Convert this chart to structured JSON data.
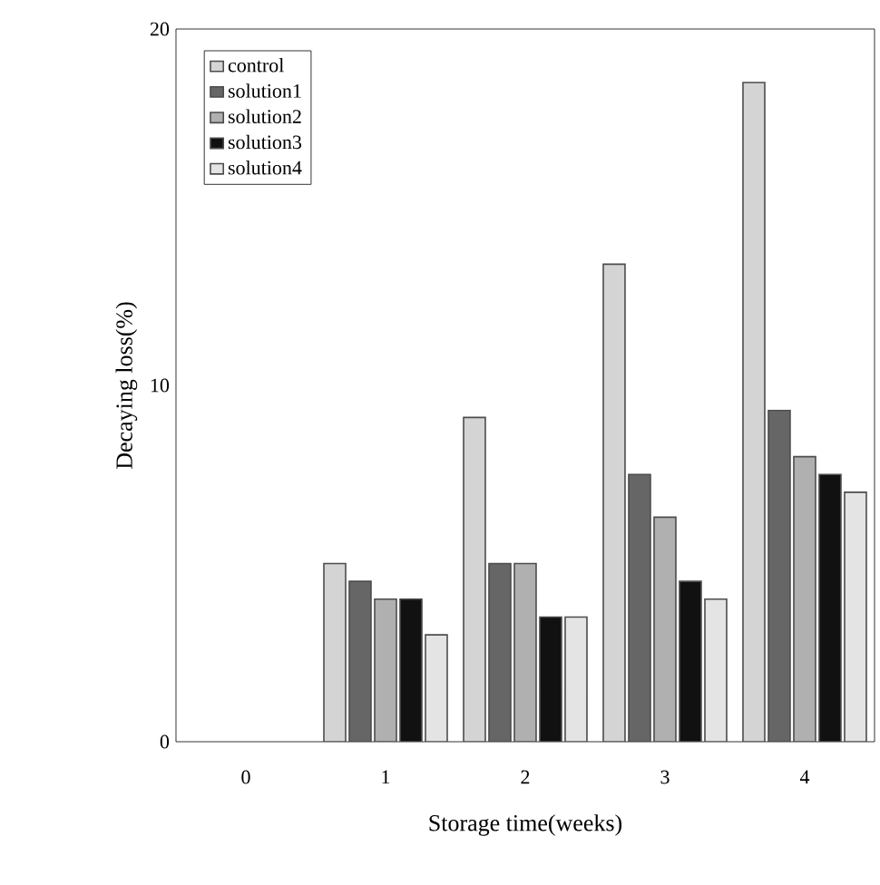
{
  "chart_data": {
    "type": "bar",
    "xlabel": "Storage time(weeks)",
    "ylabel": "Decaying loss(%)",
    "categories": [
      "0",
      "1",
      "2",
      "3",
      "4"
    ],
    "series": [
      {
        "name": "control",
        "color": "#d4d4d4",
        "values": [
          null,
          5,
          9.1,
          13.4,
          18.5
        ]
      },
      {
        "name": "solution1",
        "color": "#666666",
        "values": [
          null,
          4.5,
          5,
          7.5,
          9.3
        ]
      },
      {
        "name": "solution2",
        "color": "#b0b0b0",
        "values": [
          null,
          4,
          5,
          6.3,
          8
        ]
      },
      {
        "name": "solution3",
        "color": "#111111",
        "values": [
          null,
          4,
          3.5,
          4.5,
          7.5
        ]
      },
      {
        "name": "solution4",
        "color": "#e4e4e4",
        "values": [
          null,
          3,
          3.5,
          4,
          7
        ]
      }
    ],
    "ylim": [
      0,
      20
    ],
    "yticks": [
      0,
      10,
      20
    ],
    "legend": "top left",
    "grid": false
  }
}
